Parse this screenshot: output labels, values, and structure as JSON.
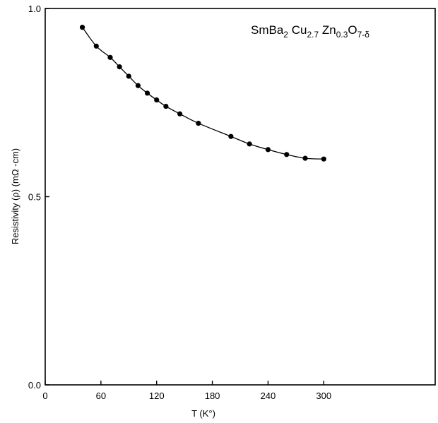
{
  "chart_data": {
    "type": "scatter",
    "title": {
      "parts": [
        {
          "text": "SmBa",
          "sub": false
        },
        {
          "text": "2",
          "sub": true
        },
        {
          "text": " Cu",
          "sub": false
        },
        {
          "text": "2.7",
          "sub": true
        },
        {
          "text": " Zn",
          "sub": false
        },
        {
          "text": "0.3",
          "sub": true
        },
        {
          "text": "O",
          "sub": false
        },
        {
          "text": "7-δ",
          "sub": true
        }
      ]
    },
    "xlabel": "T (K°)",
    "ylabel": "Resistivity (ρ) (mΩ -cm)",
    "xlim": [
      0,
      420
    ],
    "ylim": [
      0,
      1
    ],
    "x_ticks": [
      0,
      60,
      120,
      180,
      240,
      300
    ],
    "x_tick_labels": [
      "0",
      "60",
      "120",
      "180",
      "240",
      "300"
    ],
    "y_ticks": [
      0,
      0.5,
      1
    ],
    "y_tick_labels": [
      "0.0",
      "0.5",
      "1.0"
    ],
    "grid": false,
    "series": [
      {
        "x": [
          40,
          55,
          70,
          80,
          90,
          100,
          110,
          120,
          130,
          145,
          165,
          200,
          220,
          240,
          260,
          280,
          300
        ],
        "y": [
          0.95,
          0.9,
          0.87,
          0.845,
          0.82,
          0.795,
          0.775,
          0.757,
          0.74,
          0.72,
          0.695,
          0.66,
          0.64,
          0.625,
          0.612,
          0.602,
          0.6
        ],
        "marker": "filled-circle",
        "fit_line": true,
        "color": "#000000"
      }
    ]
  }
}
